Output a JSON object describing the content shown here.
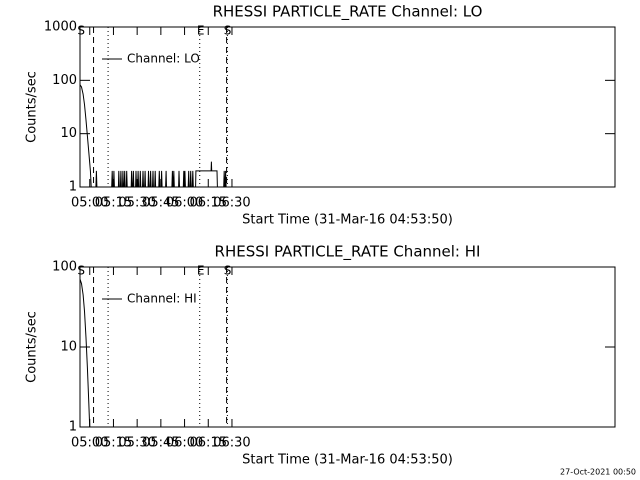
{
  "chart_data": [
    {
      "type": "line",
      "title": "RHESSI PARTICLE_RATE Channel: LO",
      "xlabel": "Start Time (31-Mar-16 04:53:50)",
      "ylabel": "Counts/sec",
      "log_y": true,
      "legend": "upper left",
      "color": "#000000",
      "xlim": [
        293.83,
        632.4
      ],
      "ylim": [
        1,
        1000
      ],
      "xticks": [
        {
          "value": 300,
          "label": "05:00"
        },
        {
          "value": 315,
          "label": "05:15"
        },
        {
          "value": 330,
          "label": "05:30"
        },
        {
          "value": 345,
          "label": "05:45"
        },
        {
          "value": 360,
          "label": "06:00"
        },
        {
          "value": 375,
          "label": "06:15"
        },
        {
          "value": 390,
          "label": "06:30"
        }
      ],
      "yticks": [
        1,
        10,
        100,
        1000
      ],
      "markers": [
        {
          "x": 302.4,
          "style": "dashed"
        },
        {
          "x": 311.6,
          "style": "dotted"
        },
        {
          "x": 369.6,
          "style": "dotted"
        },
        {
          "x": 386.6,
          "style": "dashed"
        },
        {
          "x": 387.1,
          "style": "dotted"
        }
      ],
      "flags": [
        {
          "x": 294.6,
          "label": "S"
        },
        {
          "x": 370.2,
          "label": "E"
        },
        {
          "x": 387.2,
          "label": "S"
        }
      ],
      "series": [
        {
          "name": "Channel: LO",
          "color": "#000000",
          "x": [
            293.9,
            294.8,
            295.8,
            296.7,
            297.6,
            298.5,
            299.4,
            300.4,
            300.9,
            303.9,
            304.2,
            304.5,
            313.9,
            314.2,
            314.5,
            315.0,
            315.3,
            315.6,
            318.1,
            318.4,
            318.7,
            319.4,
            319.7,
            320.0,
            320.7,
            321.0,
            321.3,
            321.8,
            322.1,
            322.4,
            323.1,
            323.4,
            323.7,
            326.2,
            326.5,
            326.8,
            327.3,
            327.6,
            327.9,
            329.0,
            329.3,
            329.6,
            330.3,
            330.6,
            330.9,
            331.7,
            332.0,
            332.3,
            333.4,
            333.7,
            334.0,
            334.7,
            335.0,
            335.3,
            336.9,
            337.2,
            337.5,
            338.2,
            338.5,
            338.8,
            339.7,
            340.0,
            340.3,
            341.1,
            341.4,
            341.7,
            343.7,
            344.0,
            344.3,
            345.2,
            345.5,
            345.8,
            348.0,
            348.3,
            348.6,
            352.0,
            352.3,
            352.6,
            352.9,
            353.2,
            353.5,
            356.2,
            356.5,
            356.8,
            359.2,
            359.5,
            359.8,
            359.9,
            360.2,
            360.5,
            362.3,
            362.6,
            362.9,
            363.6,
            363.9,
            364.2,
            364.9,
            365.2,
            365.5,
            367.0,
            367.2,
            375.0,
            376.8,
            377.0,
            377.2,
            380.5,
            380.8,
            384.8,
            385.1,
            385.4,
            385.7,
            386.0,
            386.3
          ],
          "values": [
            82,
            75,
            55,
            35,
            18,
            9,
            4.5,
            2,
            1,
            1,
            2,
            1,
            1,
            2,
            1,
            1,
            2,
            1,
            1,
            2,
            1,
            1,
            2,
            1,
            1,
            2,
            1,
            1,
            2,
            1,
            1,
            2,
            1,
            1,
            2,
            1,
            1,
            2,
            1,
            1,
            2,
            1,
            1,
            2,
            1,
            1,
            2,
            1,
            1,
            2,
            1,
            1,
            2,
            1,
            1,
            2,
            1,
            1,
            2,
            1,
            1,
            2,
            1,
            1,
            2,
            1,
            1,
            2,
            1,
            1,
            2,
            1,
            1,
            2,
            1,
            1,
            2,
            1,
            1,
            2,
            1,
            1,
            2,
            1,
            1,
            2,
            1,
            1,
            2,
            1,
            1,
            2,
            1,
            1,
            2,
            1,
            1,
            2,
            1,
            1,
            2,
            2,
            2,
            3,
            2,
            2,
            1,
            1,
            2,
            1,
            1,
            2,
            1
          ]
        }
      ]
    },
    {
      "type": "line",
      "title": "RHESSI PARTICLE_RATE Channel: HI",
      "xlabel": "Start Time (31-Mar-16 04:53:50)",
      "ylabel": "Counts/sec",
      "log_y": true,
      "legend": "upper left",
      "color": "#000000",
      "xlim": [
        293.83,
        632.4
      ],
      "ylim": [
        1,
        100
      ],
      "xticks": [
        {
          "value": 300,
          "label": "05:00"
        },
        {
          "value": 315,
          "label": "05:15"
        },
        {
          "value": 330,
          "label": "05:30"
        },
        {
          "value": 345,
          "label": "05:45"
        },
        {
          "value": 360,
          "label": "06:00"
        },
        {
          "value": 375,
          "label": "06:15"
        },
        {
          "value": 390,
          "label": "06:30"
        }
      ],
      "yticks": [
        1,
        10,
        100
      ],
      "markers": [
        {
          "x": 302.4,
          "style": "dashed"
        },
        {
          "x": 311.6,
          "style": "dotted"
        },
        {
          "x": 369.6,
          "style": "dotted"
        },
        {
          "x": 386.6,
          "style": "dashed"
        },
        {
          "x": 387.1,
          "style": "dotted"
        }
      ],
      "flags": [
        {
          "x": 294.6,
          "label": "S"
        },
        {
          "x": 370.2,
          "label": "E"
        },
        {
          "x": 387.2,
          "label": "S"
        }
      ],
      "series": [
        {
          "name": "Channel: HI",
          "color": "#000000",
          "x": [
            293.9,
            294.8,
            295.8,
            296.7,
            297.6,
            298.5,
            299.4,
            300.0
          ],
          "values": [
            70,
            62,
            45,
            28,
            13,
            5.5,
            2,
            1
          ]
        }
      ]
    }
  ],
  "footer": "27-Oct-2021 00:50"
}
